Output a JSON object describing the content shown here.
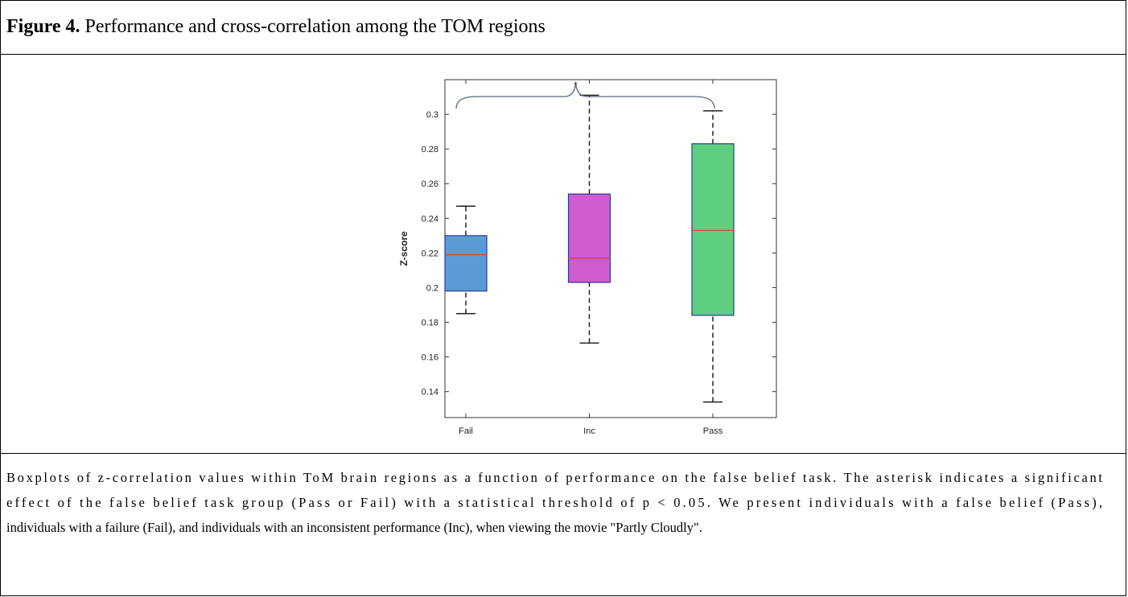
{
  "figure_label": "Figure 4.",
  "figure_title": "Performance and cross-correlation among the TOM regions",
  "caption_lines": [
    "Boxplots of z-correlation values within ToM brain regions as a function of performance on the false belief task. The asterisk indicates a significant",
    "effect of the false belief task group (Pass or Fail) with a statistical threshold of p < 0.05. We present individuals with a false belief (Pass),",
    "individuals with a failure (Fail), and individuals with an inconsistent performance (Inc), when viewing the movie \"Partly Cloudly\"."
  ],
  "chart_data": {
    "type": "box",
    "ylabel": "Z-score",
    "categories": [
      "Fail",
      "Inc",
      "Pass"
    ],
    "colors": [
      "#5b9bd5",
      "#d05ad0",
      "#5ecf7e"
    ],
    "boxes": [
      {
        "min": 0.185,
        "q1": 0.198,
        "median": 0.219,
        "q3": 0.23,
        "max": 0.247
      },
      {
        "min": 0.168,
        "q1": 0.203,
        "median": 0.217,
        "q3": 0.254,
        "max": 0.311
      },
      {
        "min": 0.134,
        "q1": 0.184,
        "median": 0.233,
        "q3": 0.283,
        "max": 0.302
      }
    ],
    "annotation": "*",
    "ylim": [
      0.125,
      0.32
    ],
    "yticks": [
      0.14,
      0.16,
      0.18,
      0.2,
      0.22,
      0.24,
      0.26,
      0.28,
      0.3
    ]
  }
}
